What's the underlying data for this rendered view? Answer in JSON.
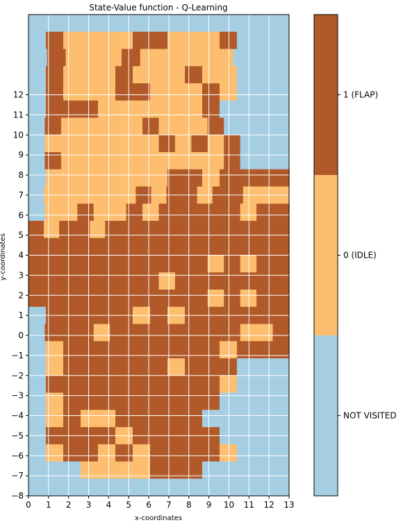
{
  "chart_data": {
    "type": "heatmap",
    "title": "State-Value function - Q-Learning",
    "xlabel": "x-coordinates",
    "ylabel": "y-coordinates",
    "x_ticks": [
      "0",
      "1",
      "2",
      "3",
      "4",
      "5",
      "6",
      "7",
      "8",
      "9",
      "10",
      "11",
      "12",
      "13"
    ],
    "y_ticks": [
      "−8",
      "−7",
      "−6",
      "−5",
      "−4",
      "−3",
      "−2",
      "−1",
      "0",
      "1",
      "2",
      "3",
      "4",
      "5",
      "6",
      "7",
      "8",
      "9",
      "10",
      "11",
      "12"
    ],
    "xlim": [
      0,
      13
    ],
    "ylim": [
      -8,
      16
    ],
    "grid": true,
    "colorbar": {
      "ticks": [
        {
          "value": 1,
          "label": "1 (FLAP)"
        },
        {
          "value": 0,
          "label": "0 (IDLE)"
        },
        {
          "value": -1,
          "label": "NOT VISITED"
        }
      ],
      "colors": {
        "1": "#b15928",
        "0": "#fdbf6f",
        "-1": "#a6cee3"
      }
    },
    "legend": {
      "1": "FLAP",
      "0": "IDLE",
      "-1": "NOT VISITED"
    },
    "rows_top_to_bottom": [
      "N",
      "NFIIIIFFIIIFNNN",
      "NFIIIFIIIIINNN",
      "NFIIIFIIIFIINNN",
      "NFIIIFFIIIFINNN",
      "NFFFIIIIIIFNNNN",
      "NFIIIIIFIIIFNNNN",
      "NIIIIIIIFIFIFNNN",
      "NFIIIIIIIIIIFNNN",
      "NIIIIIIIFFIFFFF",
      "NIIIIIIFIFFIFFIII",
      "NIIFIIFIFFFFFIFF",
      "FIFFIFFFFFFFFFFFF",
      "FFFFFFFFFFFFFFF",
      "FFFFFFFFFFFIFIFF",
      "FFFFFFFFIFFFFFFF",
      "FFFFFFFFFFFIFIFF",
      "NFFFFFIFIFFFFFF",
      "NFFFIFFFFFFFFIIF",
      "NIFFFFFFFFFIFFF",
      "NIFFFFFFIFFFNNN",
      "NFFFFFFFFFFINNN",
      "NIFFFFFFFFFNNNN",
      "NIFIIFFFFFNNNNN",
      "NFFFFIFFFFFNNNN",
      "NIFFIFIFFFFINNN",
      "NNNIIIIFFFNNNNN",
      "NNNNNNNNNNNNNNN"
    ]
  }
}
